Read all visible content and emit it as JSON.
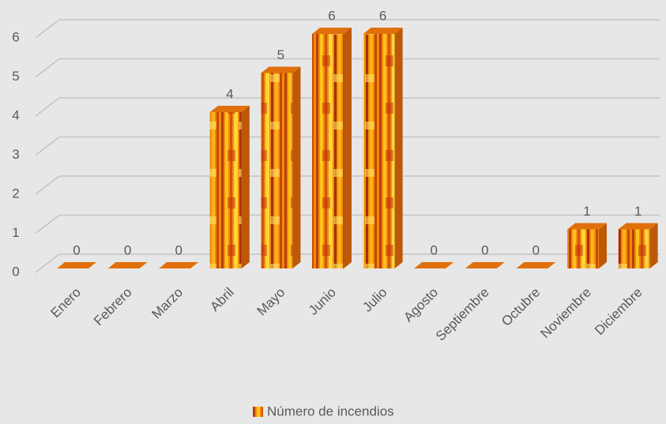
{
  "chart_data": {
    "type": "bar3d",
    "categories": [
      "Enero",
      "Febrero",
      "Marzo",
      "Abril",
      "Mayo",
      "Junio",
      "Julio",
      "Agosto",
      "Septiembre",
      "Octubre",
      "Noviembre",
      "Diciembre"
    ],
    "series": [
      {
        "name": "Número de incendios",
        "color": "#e0700c",
        "values": [
          0,
          0,
          0,
          4,
          5,
          6,
          6,
          0,
          0,
          0,
          1,
          1
        ]
      }
    ],
    "ylim": [
      0,
      6
    ],
    "yticks": [
      0,
      1,
      2,
      3,
      4,
      5,
      6
    ],
    "grid": true,
    "legend": "bottom"
  }
}
